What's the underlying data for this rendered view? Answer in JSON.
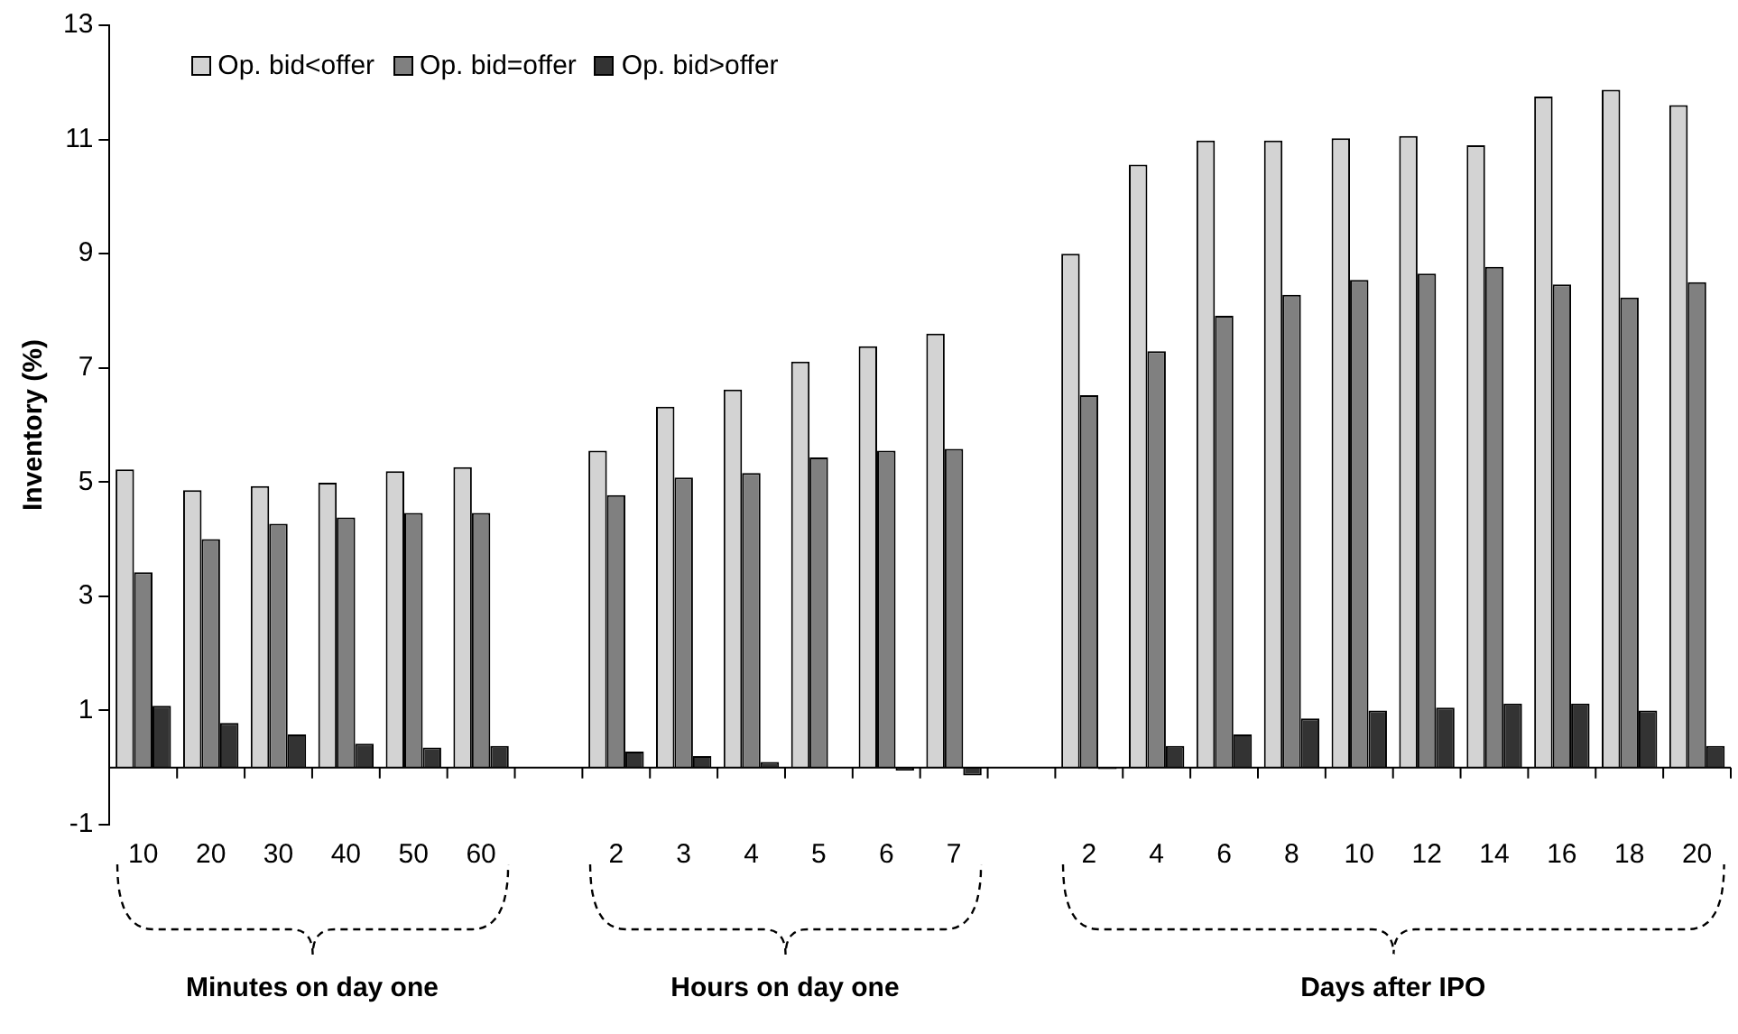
{
  "chart_data": {
    "type": "bar",
    "ylabel": "Inventory (%)",
    "categories": [
      "10",
      "20",
      "30",
      "40",
      "50",
      "60",
      null,
      "2",
      "3",
      "4",
      "5",
      "6",
      "7",
      null,
      "2",
      "4",
      "6",
      "8",
      "10",
      "12",
      "14",
      "16",
      "18",
      "20"
    ],
    "series": [
      {
        "name": "Op. bid<offer",
        "color": "#d3d3d3",
        "values": [
          5.22,
          4.86,
          4.93,
          4.99,
          5.19,
          5.26,
          null,
          5.55,
          6.32,
          6.62,
          7.11,
          7.38,
          7.6,
          null,
          9.0,
          10.56,
          10.98,
          10.98,
          11.02,
          11.06,
          10.9,
          11.75,
          11.87,
          11.6
        ]
      },
      {
        "name": "Op. bid=offer",
        "color": "#808080",
        "values": [
          3.42,
          4.0,
          4.27,
          4.38,
          4.46,
          4.46,
          null,
          4.77,
          5.08,
          5.16,
          5.43,
          5.55,
          5.58,
          null,
          6.52,
          7.29,
          7.91,
          8.28,
          8.54,
          8.65,
          8.77,
          8.46,
          8.23,
          8.5
        ]
      },
      {
        "name": "Op. bid>offer",
        "color": "#333333",
        "values": [
          1.08,
          0.78,
          0.58,
          0.42,
          0.35,
          0.38,
          null,
          0.28,
          0.2,
          0.1,
          0.0,
          -0.05,
          -0.14,
          null,
          -0.03,
          0.38,
          0.58,
          0.86,
          1.0,
          1.05,
          1.12,
          1.12,
          1.0,
          0.38
        ]
      }
    ],
    "ylim": [
      -1,
      13
    ],
    "yticks": [
      -1,
      1,
      3,
      5,
      7,
      9,
      11,
      13
    ],
    "legend": "top left",
    "annotations": [
      "Minutes on day one",
      "Hours on day one",
      "Days after IPO"
    ]
  }
}
